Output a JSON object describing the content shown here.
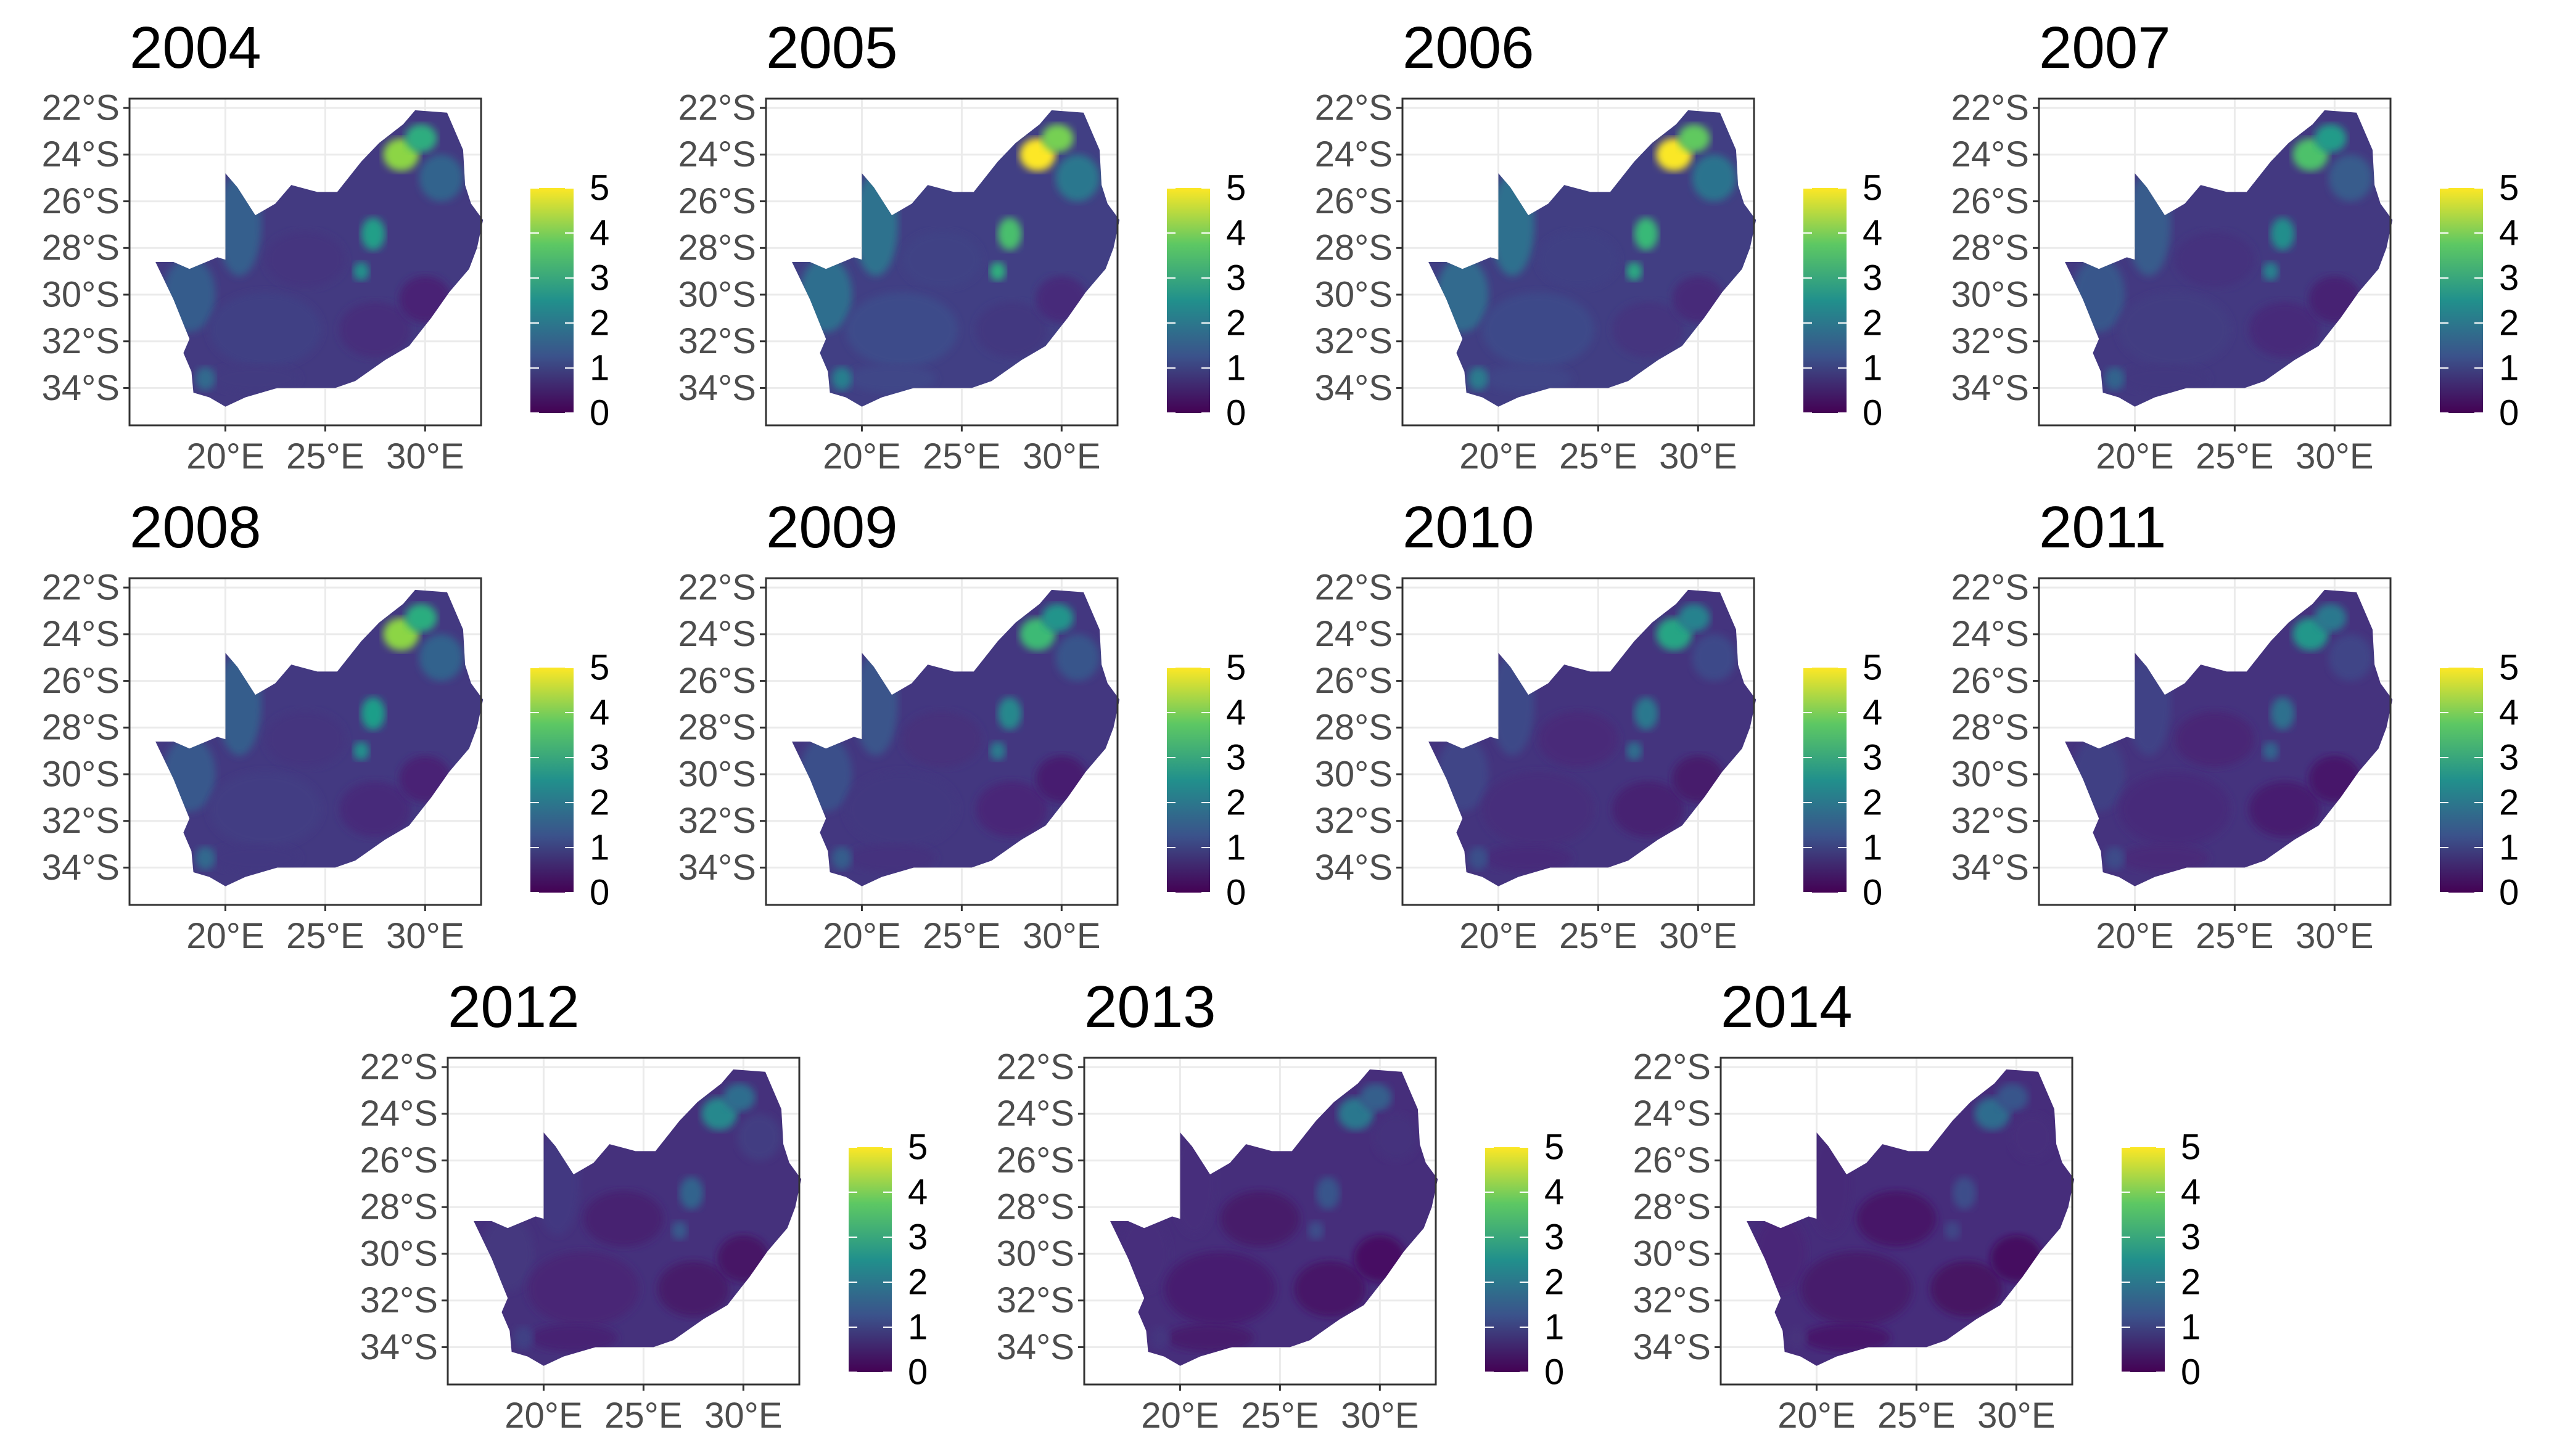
{
  "figure": {
    "panels": [
      {
        "title": "2004",
        "intensity": 0.72,
        "hot": 0.78
      },
      {
        "title": "2005",
        "intensity": 0.9,
        "hot": 1.0
      },
      {
        "title": "2006",
        "intensity": 0.86,
        "hot": 0.95
      },
      {
        "title": "2007",
        "intensity": 0.68,
        "hot": 0.62
      },
      {
        "title": "2008",
        "intensity": 0.7,
        "hot": 0.8
      },
      {
        "title": "2009",
        "intensity": 0.62,
        "hot": 0.62
      },
      {
        "title": "2010",
        "intensity": 0.52,
        "hot": 0.55
      },
      {
        "title": "2011",
        "intensity": 0.48,
        "hot": 0.48
      },
      {
        "title": "2012",
        "intensity": 0.4,
        "hot": 0.45
      },
      {
        "title": "2013",
        "intensity": 0.32,
        "hot": 0.4
      },
      {
        "title": "2014",
        "intensity": 0.28,
        "hot": 0.36
      }
    ],
    "y_ticks": [
      "22°S",
      "24°S",
      "26°S",
      "28°S",
      "30°S",
      "32°S",
      "34°S"
    ],
    "x_ticks": [
      "20°E",
      "25°E",
      "30°E"
    ],
    "legend": {
      "labels": [
        "0",
        "1",
        "2",
        "3",
        "4",
        "5"
      ],
      "min": 0,
      "max": 5,
      "colors": [
        "#440154",
        "#3b528b",
        "#21908c",
        "#5dc863",
        "#fde725"
      ]
    },
    "colors": {
      "grid": "#ebebeb",
      "frame": "#333333",
      "tick_text": "#4d4d4d"
    }
  },
  "chart_data": {
    "type": "heatmap",
    "description_years": [
      "2004",
      "2005",
      "2006",
      "2007",
      "2008",
      "2009",
      "2010",
      "2011",
      "2012",
      "2013",
      "2014"
    ],
    "lat_ticks": [
      "22°S",
      "24°S",
      "26°S",
      "28°S",
      "30°S",
      "32°S",
      "34°S"
    ],
    "lon_ticks": [
      "20°E",
      "25°E",
      "30°E"
    ],
    "scale": {
      "min": 0,
      "max": 5,
      "palette": "viridis"
    }
  }
}
